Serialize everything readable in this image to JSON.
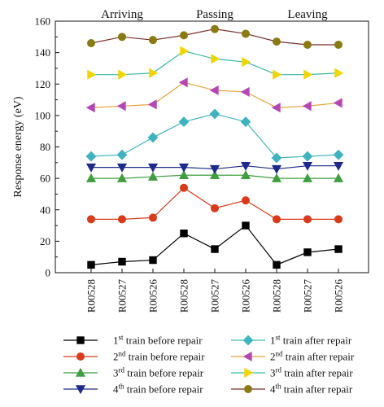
{
  "chart_data": {
    "type": "line",
    "title": "",
    "xlabel": "",
    "ylabel": "Response energy (eV)",
    "ylim": [
      0,
      160
    ],
    "yticks": [
      0,
      20,
      40,
      60,
      80,
      100,
      120,
      140,
      160
    ],
    "categories": [
      "R00528",
      "R00527",
      "R00526",
      "R00528",
      "R00527",
      "R00526",
      "R00528",
      "R00527",
      "R00526"
    ],
    "sections": [
      "Arriving",
      "Passing",
      "Leaving"
    ],
    "grid": false,
    "legend_position": "bottom",
    "series": [
      {
        "name": "1st train before repair",
        "ordinal": "1",
        "suffix": "st",
        "rest": " train before repair",
        "color": "#000000",
        "marker": "square",
        "values": [
          5,
          7,
          8,
          25,
          15,
          30,
          5,
          13,
          15
        ]
      },
      {
        "name": "2nd train before repair",
        "ordinal": "2",
        "suffix": "nd",
        "rest": " train before repair",
        "color": "#d93a1a",
        "marker": "circle",
        "values": [
          34,
          34,
          35,
          54,
          41,
          46,
          34,
          34,
          34
        ]
      },
      {
        "name": "3rd train before repair",
        "ordinal": "3",
        "suffix": "rd",
        "rest": " train before repair",
        "color": "#3f9e3f",
        "marker": "triangle-up",
        "values": [
          60,
          60,
          61,
          62,
          62,
          62,
          60,
          60,
          60
        ]
      },
      {
        "name": "4th train before repair",
        "ordinal": "4",
        "suffix": "th",
        "rest": " train before repair",
        "color": "#1d2a8c",
        "marker": "triangle-down",
        "values": [
          67,
          67,
          67,
          67,
          66,
          68,
          66,
          68,
          68
        ]
      },
      {
        "name": "1st train after repair",
        "ordinal": "1",
        "suffix": "st",
        "rest": " train after repair",
        "color": "#3fb3c0",
        "marker": "diamond",
        "values": [
          74,
          75,
          86,
          96,
          101,
          96,
          73,
          74,
          75
        ]
      },
      {
        "name": "2nd train after repair",
        "ordinal": "2",
        "suffix": "nd",
        "rest": " train after repair",
        "color": "#b646b6",
        "marker": "triangle-left",
        "values": [
          105,
          106,
          107,
          121,
          116,
          115,
          105,
          106,
          108
        ]
      },
      {
        "name": "3rd train after repair",
        "ordinal": "3",
        "suffix": "rd",
        "rest": " train after repair",
        "color": "#f2d400",
        "marker": "triangle-right",
        "values": [
          126,
          126,
          127,
          141,
          136,
          134,
          126,
          126,
          127
        ]
      },
      {
        "name": "4th train after repair",
        "ordinal": "4",
        "suffix": "th",
        "rest": " train after repair",
        "color": "#8a7a12",
        "marker": "circle",
        "values": [
          146,
          150,
          148,
          151,
          155,
          152,
          147,
          145,
          145
        ]
      }
    ],
    "line_colors": [
      "#000000",
      "#d93a1a",
      "#3f9e3f",
      "#1d2a8c",
      "#3fb3c0",
      "#e8a23a",
      "#38b8a4",
      "#7a2e2e"
    ]
  }
}
